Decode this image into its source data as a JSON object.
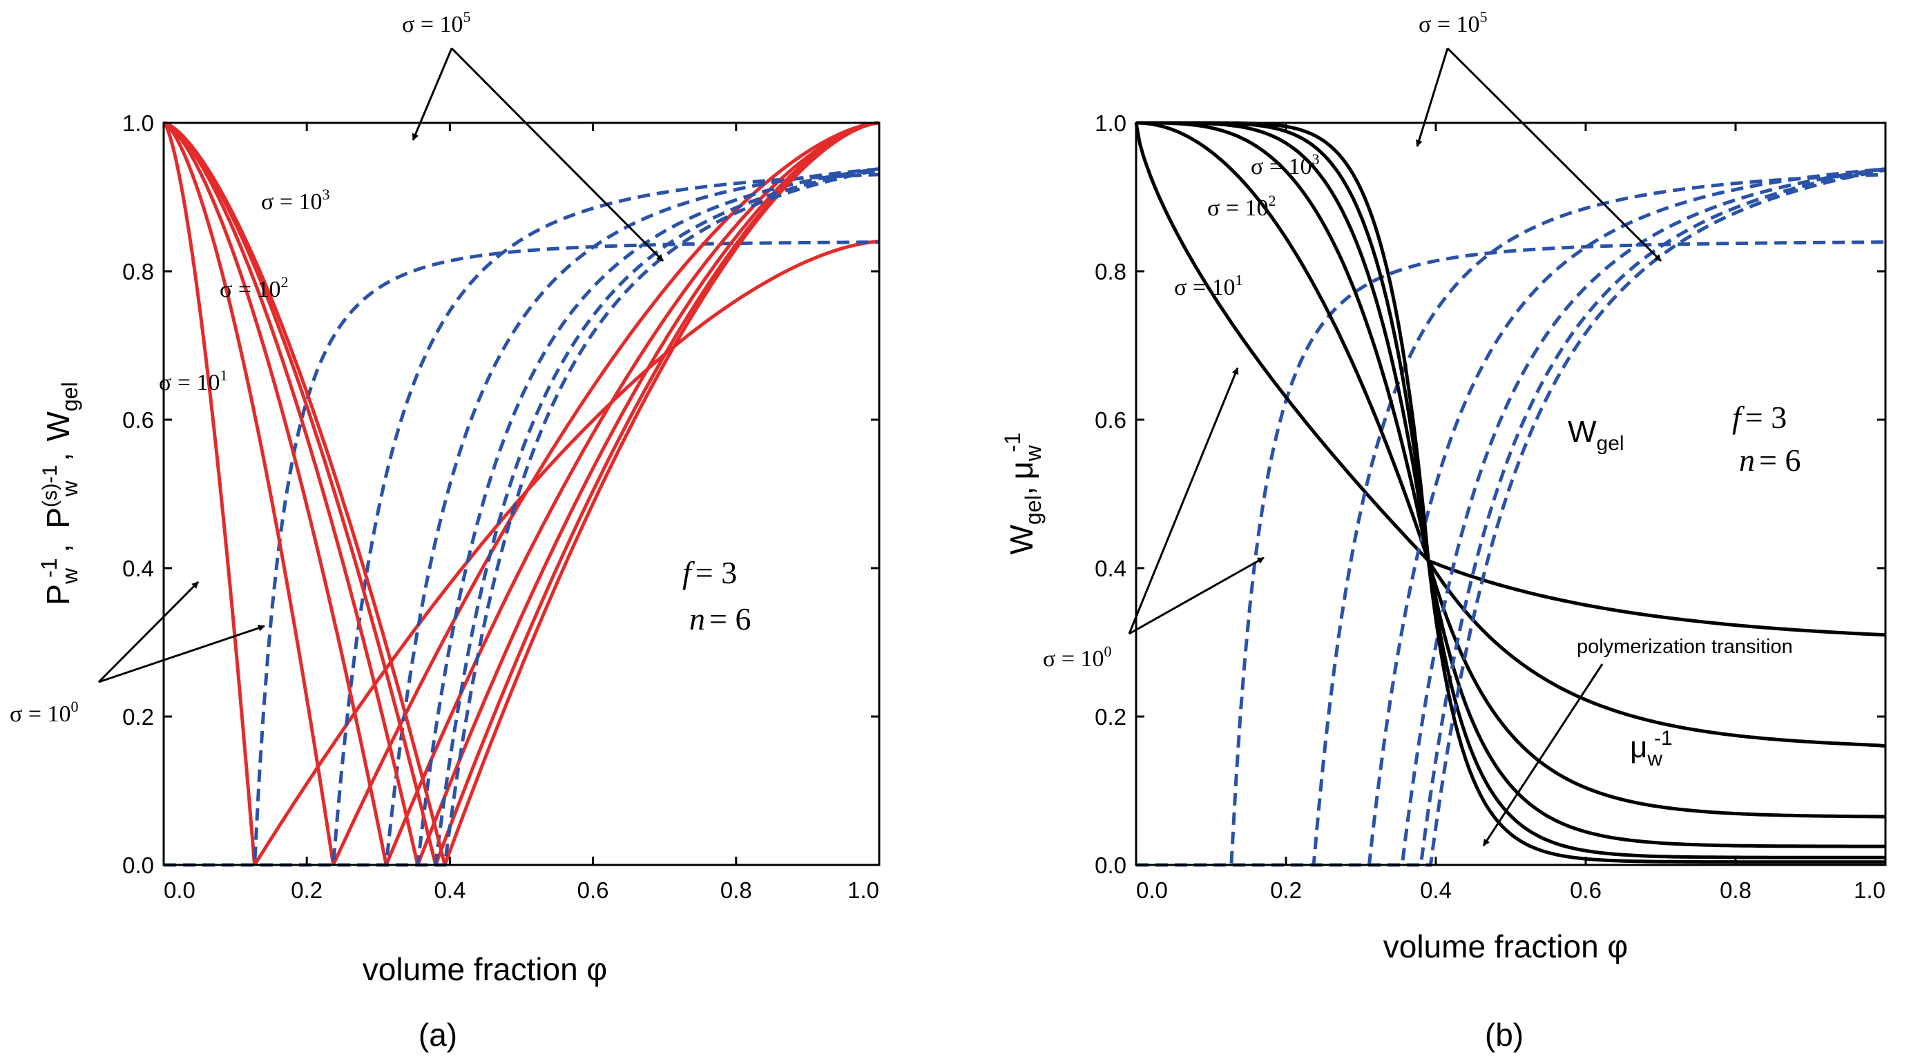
{
  "colors": {
    "red": "#e32b2b",
    "blue": "#2a52a8",
    "black": "#000000"
  },
  "chart_data": [
    {
      "type": "line",
      "panel_label": "(a)",
      "xlabel": "volume fraction  φ",
      "ylabel_parts": {
        "p": "P",
        "w": "w",
        "neg1": "-1",
        "sep": ",",
        "s": "(s)",
        "W": "W",
        "gel": "gel"
      },
      "xlim": [
        0,
        1
      ],
      "ylim": [
        0,
        1
      ],
      "xticks": [
        "0.0",
        "0.2",
        "0.4",
        "0.6",
        "0.8",
        "1.0"
      ],
      "yticks": [
        "0.0",
        "0.2",
        "0.4",
        "0.6",
        "0.8",
        "1.0"
      ],
      "grid": false,
      "params": {
        "f_label": "f",
        "f_value": "= 3",
        "n_label": "n",
        "n_value": "= 6"
      },
      "sigma_labels": [
        {
          "base": "σ = 10",
          "exp": "5"
        },
        {
          "base": "σ = 10",
          "exp": "3"
        },
        {
          "base": "σ = 10",
          "exp": "2"
        },
        {
          "base": "σ = 10",
          "exp": "1"
        },
        {
          "base": "σ = 10",
          "exp": "0"
        }
      ],
      "series": [
        {
          "sigma": "1",
          "phi_c": 0.127,
          "sat": 0.841
        },
        {
          "sigma": "10",
          "phi_c": 0.237,
          "sat": 0.943
        },
        {
          "sigma": "100",
          "phi_c": 0.311,
          "sat": 0.967
        },
        {
          "sigma": "1000",
          "phi_c": 0.355,
          "sat": 0.982
        },
        {
          "sigma": "10000",
          "phi_c": 0.38,
          "sat": 0.992
        },
        {
          "sigma": "100000",
          "phi_c": 0.393,
          "sat": 0.997
        }
      ]
    },
    {
      "type": "line",
      "panel_label": "(b)",
      "xlabel": "volume fraction  φ",
      "ylabel_parts": {
        "W": "W",
        "gel": "gel",
        "sep": ",",
        "mu": "μ",
        "w": "w",
        "neg1": "-1"
      },
      "xlim": [
        0,
        1
      ],
      "ylim": [
        0,
        1
      ],
      "xticks": [
        "0.0",
        "0.2",
        "0.4",
        "0.6",
        "0.8",
        "1.0"
      ],
      "yticks": [
        "0.0",
        "0.2",
        "0.4",
        "0.6",
        "0.8",
        "1.0"
      ],
      "grid": false,
      "params": {
        "f_label": "f",
        "f_value": "= 3",
        "n_label": "n",
        "n_value": "= 6"
      },
      "sigma_labels": [
        {
          "base": "σ = 10",
          "exp": "5"
        },
        {
          "base": "σ = 10",
          "exp": "3"
        },
        {
          "base": "σ = 10",
          "exp": "2"
        },
        {
          "base": "σ = 10",
          "exp": "1"
        },
        {
          "base": "σ = 10",
          "exp": "0"
        }
      ],
      "annotations": {
        "wgel_main": "W",
        "wgel_sub": "gel",
        "mu_main": "μ",
        "mu_sub": "w",
        "mu_sup": "-1",
        "transition": "polymerization transition"
      },
      "series": [
        {
          "sigma": "1",
          "phi_c": 0.127,
          "sat": 0.841,
          "mu_end": 0.31
        },
        {
          "sigma": "10",
          "phi_c": 0.237,
          "sat": 0.943,
          "mu_end": 0.16
        },
        {
          "sigma": "100",
          "phi_c": 0.311,
          "sat": 0.967,
          "mu_end": 0.065
        },
        {
          "sigma": "1000",
          "phi_c": 0.355,
          "sat": 0.982,
          "mu_end": 0.025
        },
        {
          "sigma": "10000",
          "phi_c": 0.38,
          "sat": 0.992,
          "mu_end": 0.01
        },
        {
          "sigma": "100000",
          "phi_c": 0.393,
          "sat": 0.997,
          "mu_end": 0.004
        }
      ]
    }
  ]
}
